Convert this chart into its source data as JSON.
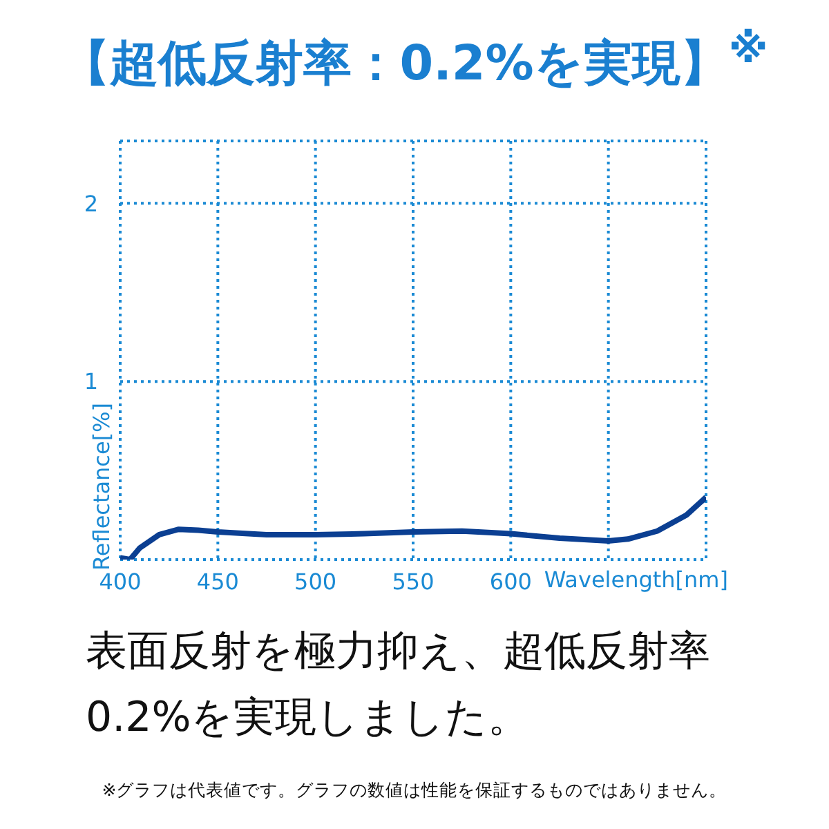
{
  "chart_data": {
    "type": "line",
    "title": "【超低反射率：0.2%を実現】$^{※}$",
    "subtitle": "表面反射を極力抑え、超低反射率0.2%を実現しました。",
    "annotations": [
      "※グラフは代表値です。グラフの数値は性能を保証するものではありません。"
    ],
    "xlabel": "Wavelength[nm]",
    "ylabel": "Reflectance[%]",
    "x": [
      400,
      405,
      410,
      420,
      430,
      440,
      450,
      475,
      500,
      525,
      550,
      575,
      600,
      625,
      650,
      660,
      675,
      690,
      700
    ],
    "series": [
      {
        "color": "#0b3f92",
        "values": [
          0.01,
          0.0,
          0.065,
          0.14,
          0.17,
          0.165,
          0.155,
          0.14,
          0.14,
          0.145,
          0.155,
          0.16,
          0.145,
          0.12,
          0.105,
          0.115,
          0.16,
          0.25,
          0.35
        ]
      }
    ],
    "xlim": [
      400,
      700
    ],
    "xticks": [
      400,
      450,
      500,
      550,
      600,
      {
        "value": 650,
        "label": null
      },
      {
        "value": 700,
        "label": null
      }
    ],
    "ylim": [
      0,
      2.35
    ],
    "yticks": [
      {
        "value": 0,
        "label": null
      },
      1,
      2
    ],
    "grid": true,
    "marker": "none",
    "line_style": "solid"
  }
}
